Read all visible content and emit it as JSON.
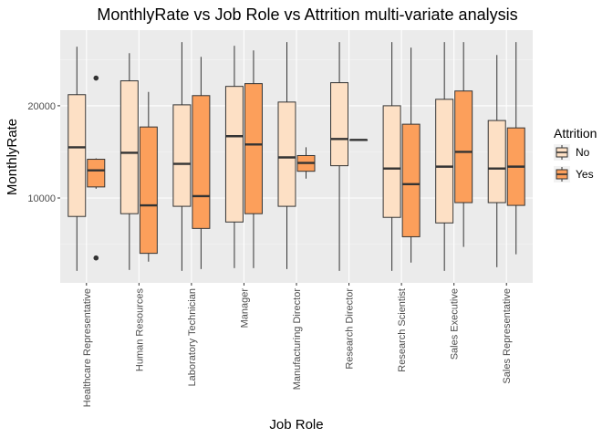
{
  "chart_data": {
    "type": "boxplot",
    "title": "MonthlyRate vs Job Role vs Attrition multi-variate analysis",
    "xlabel": "Job Role",
    "ylabel": "MonthlyRate",
    "ylim": [
      800,
      28200
    ],
    "yticks": [
      10000,
      20000
    ],
    "ytick_labels": [
      "10000",
      "20000"
    ],
    "grid": true,
    "legend_position": "right",
    "legend": {
      "title": "Attrition",
      "entries": [
        {
          "name": "No",
          "color": "#fde0c5"
        },
        {
          "name": "Yes",
          "color": "#fc9f5b"
        }
      ]
    },
    "categories": [
      "Healthcare Representative",
      "Human Resources",
      "Laboratory Technician",
      "Manager",
      "Manufacturing Director",
      "Research Director",
      "Research Scientist",
      "Sales Executive",
      "Sales Representative"
    ],
    "series": [
      {
        "name": "No",
        "color": "#fde0c5",
        "boxes": [
          {
            "min": 2100,
            "q1": 8000,
            "median": 15500,
            "q3": 21200,
            "max": 26400,
            "outliers": []
          },
          {
            "min": 2200,
            "q1": 8300,
            "median": 14900,
            "q3": 22700,
            "max": 25700,
            "outliers": []
          },
          {
            "min": 2100,
            "q1": 9100,
            "median": 13700,
            "q3": 20100,
            "max": 26900,
            "outliers": []
          },
          {
            "min": 2400,
            "q1": 7400,
            "median": 16700,
            "q3": 22100,
            "max": 26500,
            "outliers": []
          },
          {
            "min": 2300,
            "q1": 9100,
            "median": 14400,
            "q3": 20400,
            "max": 26900,
            "outliers": []
          },
          {
            "min": 2100,
            "q1": 13500,
            "median": 16400,
            "q3": 22500,
            "max": 26900,
            "outliers": []
          },
          {
            "min": 2100,
            "q1": 7900,
            "median": 13200,
            "q3": 20000,
            "max": 26900,
            "outliers": []
          },
          {
            "min": 2100,
            "q1": 7300,
            "median": 13400,
            "q3": 20700,
            "max": 26900,
            "outliers": []
          },
          {
            "min": 2500,
            "q1": 9500,
            "median": 13200,
            "q3": 18400,
            "max": 25500,
            "outliers": []
          }
        ]
      },
      {
        "name": "Yes",
        "color": "#fc9f5b",
        "boxes": [
          {
            "min": 11000,
            "q1": 11200,
            "median": 13000,
            "q3": 14200,
            "max": 14300,
            "outliers": [
              3500,
              23000
            ]
          },
          {
            "min": 3100,
            "q1": 4000,
            "median": 9200,
            "q3": 17700,
            "max": 21500,
            "outliers": []
          },
          {
            "min": 2300,
            "q1": 6700,
            "median": 10200,
            "q3": 21100,
            "max": 25300,
            "outliers": []
          },
          {
            "min": 2400,
            "q1": 8300,
            "median": 15800,
            "q3": 22400,
            "max": 26000,
            "outliers": []
          },
          {
            "min": 12100,
            "q1": 12900,
            "median": 13800,
            "q3": 14600,
            "max": 15500,
            "outliers": []
          },
          {
            "min": 16300,
            "q1": 16300,
            "median": 16300,
            "q3": 16300,
            "max": 16300,
            "outliers": []
          },
          {
            "min": 3000,
            "q1": 5800,
            "median": 11500,
            "q3": 18000,
            "max": 26300,
            "outliers": []
          },
          {
            "min": 4700,
            "q1": 9500,
            "median": 15000,
            "q3": 21600,
            "max": 26900,
            "outliers": []
          },
          {
            "min": 3900,
            "q1": 9200,
            "median": 13400,
            "q3": 17600,
            "max": 26900,
            "outliers": []
          }
        ]
      }
    ]
  }
}
